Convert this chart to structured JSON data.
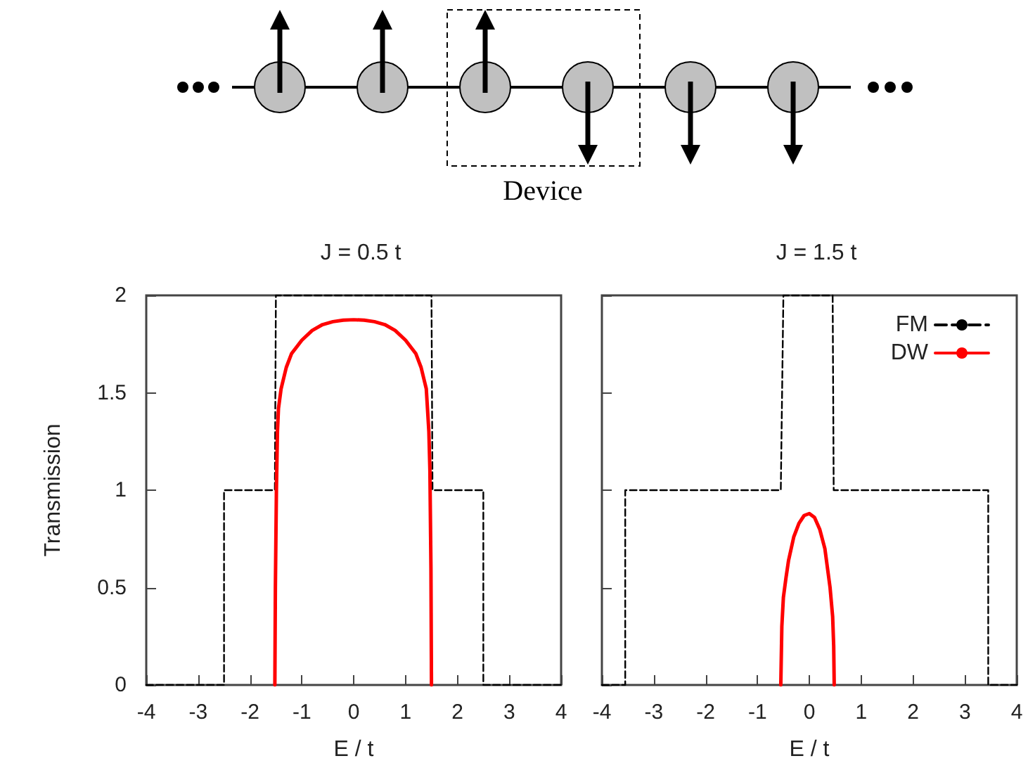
{
  "chart_data": [
    {
      "type": "other",
      "annotations": [
        "Device"
      ]
    },
    {
      "type": "line",
      "title": "J = 0.5 t",
      "xlabel": "E / t",
      "ylabel": "Transmission",
      "xlim": [
        -4,
        4
      ],
      "xticks": [
        -4,
        -3,
        -2,
        -1,
        0,
        1,
        2,
        3,
        4
      ],
      "ylim": [
        0,
        2
      ],
      "yticks": [
        0,
        0.5,
        1,
        1.5,
        2
      ],
      "marker": "none",
      "series": [
        {
          "color": "#000000",
          "line_style": "dashed",
          "x": [
            -4,
            -2.5,
            -2.5,
            -1.52,
            -1.5,
            1.5,
            1.52,
            2.5,
            2.5,
            4
          ],
          "values": [
            0,
            0,
            1,
            1,
            2,
            2,
            1,
            1,
            0,
            0
          ]
        },
        {
          "color": "#ff0000",
          "line_style": "solid",
          "x": [
            -1.52,
            -1.51,
            -1.49,
            -1.47,
            -1.45,
            -1.4,
            -1.3,
            -1.2,
            -1.0,
            -0.8,
            -0.6,
            -0.4,
            -0.2,
            0,
            0.2,
            0.4,
            0.6,
            0.8,
            1.0,
            1.2,
            1.3,
            1.4,
            1.45,
            1.47,
            1.49,
            1.5
          ],
          "values": [
            0,
            0.5,
            1.0,
            1.3,
            1.42,
            1.52,
            1.63,
            1.7,
            1.77,
            1.82,
            1.85,
            1.865,
            1.873,
            1.875,
            1.873,
            1.865,
            1.85,
            1.82,
            1.77,
            1.7,
            1.63,
            1.52,
            1.3,
            1.1,
            0.6,
            0
          ]
        }
      ]
    },
    {
      "type": "line",
      "title": "J = 1.5 t",
      "xlabel": "E / t",
      "xlim": [
        -4,
        4
      ],
      "xticks": [
        -4,
        -3,
        -2,
        -1,
        0,
        1,
        2,
        3,
        4
      ],
      "ylim": [
        0,
        2
      ],
      "yticks": [
        0,
        0.5,
        1,
        1.5,
        2
      ],
      "tick_labels": "x",
      "legend": "top right",
      "marker": "none",
      "series": [
        {
          "name": "FM",
          "color": "#000000",
          "line_style": "dashed",
          "x": [
            -4,
            -3.55,
            -3.55,
            -0.55,
            -0.5,
            0.45,
            0.47,
            3.45,
            3.45,
            4
          ],
          "values": [
            0,
            0,
            1,
            1,
            2,
            2,
            1,
            1,
            0,
            0
          ]
        },
        {
          "name": "DW",
          "color": "#ff0000",
          "line_style": "solid",
          "x": [
            -0.55,
            -0.53,
            -0.5,
            -0.45,
            -0.4,
            -0.3,
            -0.2,
            -0.1,
            0,
            0.1,
            0.2,
            0.3,
            0.4,
            0.45,
            0.47,
            0.48
          ],
          "values": [
            0,
            0.3,
            0.45,
            0.55,
            0.64,
            0.76,
            0.83,
            0.87,
            0.88,
            0.86,
            0.8,
            0.7,
            0.5,
            0.35,
            0.2,
            0
          ]
        }
      ]
    }
  ]
}
